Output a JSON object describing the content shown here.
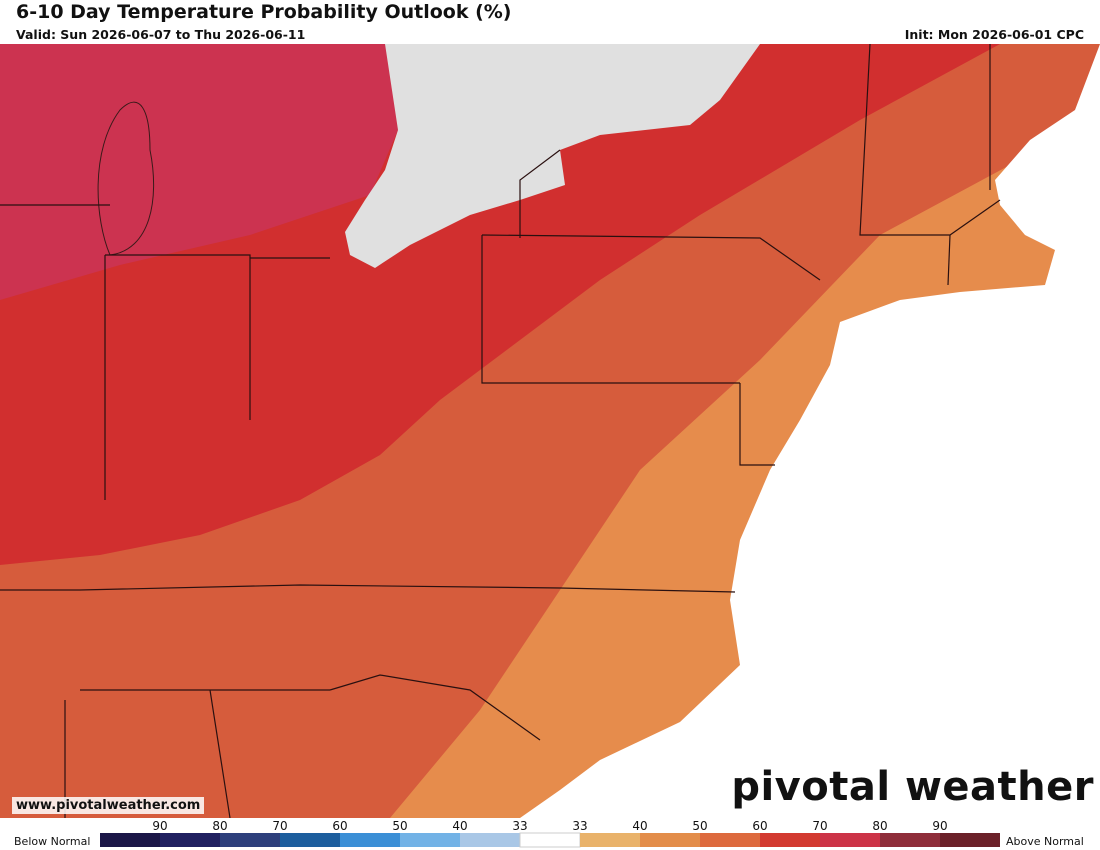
{
  "header": {
    "title": "6-10 Day Temperature Probability Outlook (%)",
    "valid": "Valid: Sun 2026-06-07 to Thu 2026-06-11",
    "init": "Init: Mon 2026-06-01 CPC"
  },
  "footer": {
    "url": "www.pivotalweather.com",
    "logo": "pivotal weather"
  },
  "legend": {
    "below_label": "Below Normal",
    "above_label": "Above Normal",
    "ticks": [
      "90",
      "80",
      "70",
      "60",
      "50",
      "40",
      "33",
      "33",
      "40",
      "50",
      "60",
      "70",
      "80",
      "90"
    ],
    "colors": [
      "#1b1747",
      "#202060",
      "#2d3f7c",
      "#1d5e9e",
      "#3b8fd6",
      "#72b2e6",
      "#a9c7e6",
      "#ffffff",
      "#e9b26a",
      "#e38d4a",
      "#dd6a3e",
      "#d33a30",
      "#cc3347",
      "#8f2d3a",
      "#6b2129"
    ]
  }
}
